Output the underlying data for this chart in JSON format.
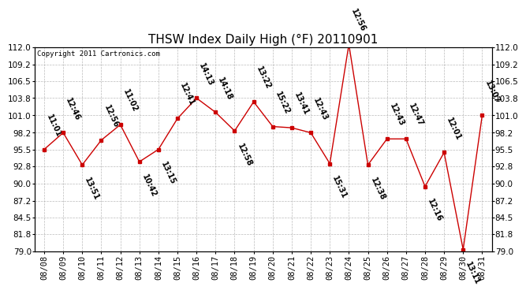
{
  "title": "THSW Index Daily High (°F) 20110901",
  "copyright": "Copyright 2011 Cartronics.com",
  "background_color": "#ffffff",
  "plot_background": "#ffffff",
  "grid_color": "#aaaaaa",
  "line_color": "#cc0000",
  "marker_color": "#cc0000",
  "dates": [
    "08/08",
    "08/09",
    "08/10",
    "08/11",
    "08/12",
    "08/13",
    "08/14",
    "08/15",
    "08/16",
    "08/17",
    "08/18",
    "08/19",
    "08/20",
    "08/21",
    "08/22",
    "08/23",
    "08/24",
    "08/25",
    "08/26",
    "08/27",
    "08/28",
    "08/29",
    "08/30",
    "08/31"
  ],
  "values": [
    95.5,
    98.2,
    93.0,
    97.0,
    99.5,
    93.5,
    95.5,
    100.5,
    103.8,
    101.5,
    98.5,
    103.2,
    99.2,
    99.0,
    98.2,
    93.2,
    112.5,
    93.0,
    97.2,
    97.2,
    89.5,
    95.0,
    79.3,
    101.0
  ],
  "times": [
    "11:01",
    "12:46",
    "13:51",
    "12:56",
    "11:02",
    "10:42",
    "13:15",
    "12:41",
    "14:13",
    "14:18",
    "12:58",
    "13:22",
    "15:22",
    "13:41",
    "12:43",
    "15:31",
    "12:56",
    "12:38",
    "12:43",
    "12:47",
    "12:16",
    "12:01",
    "13:11",
    "13:07"
  ],
  "label_above": [
    true,
    true,
    false,
    true,
    true,
    false,
    false,
    true,
    true,
    true,
    false,
    true,
    true,
    true,
    true,
    false,
    true,
    false,
    true,
    true,
    false,
    true,
    false,
    true
  ],
  "ylim_min": 79.0,
  "ylim_max": 112.0,
  "yticks": [
    79.0,
    81.8,
    84.5,
    87.2,
    90.0,
    92.8,
    95.5,
    98.2,
    101.0,
    103.8,
    106.5,
    109.2,
    112.0
  ],
  "title_fontsize": 11,
  "tick_fontsize": 7.5,
  "label_fontsize": 7,
  "label_rotation": -65
}
